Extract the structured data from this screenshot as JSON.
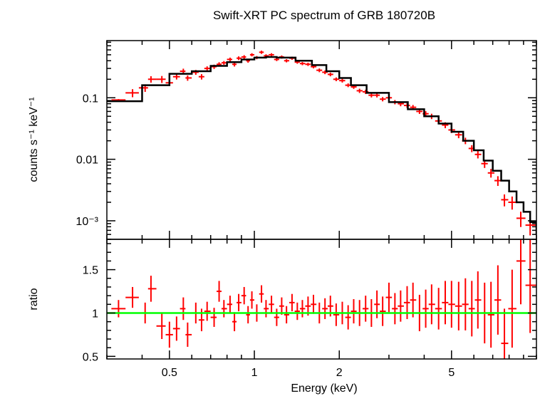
{
  "chart_data": {
    "type": "scatter",
    "title": "Swift-XRT PC spectrum of GRB 180720B",
    "xlabel": "Energy (keV)",
    "x_scale": "log",
    "xlim": [
      0.3,
      10
    ],
    "x_ticks": [
      {
        "value": 0.5,
        "label": "0.5"
      },
      {
        "value": 1,
        "label": "1"
      },
      {
        "value": 2,
        "label": "2"
      },
      {
        "value": 5,
        "label": "5"
      }
    ],
    "grid": false,
    "panels": [
      {
        "name": "spectrum",
        "ylabel": "counts s⁻¹ keV⁻¹",
        "y_scale": "log",
        "ylim": [
          0.0005,
          0.85
        ],
        "y_ticks": [
          {
            "value": 0.1,
            "label": "0.1"
          },
          {
            "value": 0.01,
            "label": "0.01"
          },
          {
            "value": 0.001,
            "label": "10⁻³"
          }
        ],
        "series": [
          {
            "kind": "data",
            "color": "#ff0000",
            "points": [
              [
                0.33,
                0.092,
                0.035
              ],
              [
                0.37,
                0.12,
                0.15
              ],
              [
                0.41,
                0.145,
                0.14
              ],
              [
                0.43,
                0.2,
                0.12
              ],
              [
                0.47,
                0.2,
                0.13
              ],
              [
                0.5,
                0.175,
                0.11
              ],
              [
                0.53,
                0.22,
                0.1
              ],
              [
                0.56,
                0.27,
                0.1
              ],
              [
                0.58,
                0.21,
                0.1
              ],
              [
                0.62,
                0.26,
                0.09
              ],
              [
                0.65,
                0.22,
                0.1
              ],
              [
                0.68,
                0.3,
                0.08
              ],
              [
                0.72,
                0.32,
                0.08
              ],
              [
                0.75,
                0.35,
                0.08
              ],
              [
                0.78,
                0.37,
                0.07
              ],
              [
                0.82,
                0.42,
                0.07
              ],
              [
                0.85,
                0.35,
                0.08
              ],
              [
                0.88,
                0.44,
                0.07
              ],
              [
                0.92,
                0.46,
                0.07
              ],
              [
                0.95,
                0.4,
                0.07
              ],
              [
                0.98,
                0.5,
                0.06
              ],
              [
                1.02,
                0.45,
                0.06
              ],
              [
                1.06,
                0.55,
                0.06
              ],
              [
                1.1,
                0.48,
                0.06
              ],
              [
                1.15,
                0.5,
                0.06
              ],
              [
                1.2,
                0.42,
                0.06
              ],
              [
                1.25,
                0.46,
                0.06
              ],
              [
                1.3,
                0.4,
                0.06
              ],
              [
                1.36,
                0.44,
                0.06
              ],
              [
                1.42,
                0.38,
                0.06
              ],
              [
                1.48,
                0.36,
                0.06
              ],
              [
                1.55,
                0.35,
                0.06
              ],
              [
                1.62,
                0.32,
                0.06
              ],
              [
                1.7,
                0.28,
                0.07
              ],
              [
                1.78,
                0.26,
                0.07
              ],
              [
                1.86,
                0.24,
                0.07
              ],
              [
                1.95,
                0.2,
                0.07
              ],
              [
                2.05,
                0.19,
                0.07
              ],
              [
                2.15,
                0.16,
                0.07
              ],
              [
                2.25,
                0.15,
                0.07
              ],
              [
                2.36,
                0.13,
                0.08
              ],
              [
                2.48,
                0.125,
                0.08
              ],
              [
                2.6,
                0.11,
                0.08
              ],
              [
                2.72,
                0.11,
                0.08
              ],
              [
                2.85,
                0.095,
                0.08
              ],
              [
                3.0,
                0.1,
                0.08
              ],
              [
                3.15,
                0.085,
                0.08
              ],
              [
                3.3,
                0.08,
                0.09
              ],
              [
                3.48,
                0.075,
                0.09
              ],
              [
                3.65,
                0.07,
                0.09
              ],
              [
                3.85,
                0.06,
                0.09
              ],
              [
                4.05,
                0.055,
                0.1
              ],
              [
                4.25,
                0.05,
                0.1
              ],
              [
                4.5,
                0.042,
                0.1
              ],
              [
                4.75,
                0.036,
                0.11
              ],
              [
                5.0,
                0.03,
                0.11
              ],
              [
                5.3,
                0.025,
                0.12
              ],
              [
                5.6,
                0.02,
                0.12
              ],
              [
                5.9,
                0.015,
                0.13
              ],
              [
                6.2,
                0.012,
                0.14
              ],
              [
                6.55,
                0.0085,
                0.15
              ],
              [
                6.9,
                0.006,
                0.16
              ],
              [
                7.3,
                0.0045,
                0.18
              ],
              [
                7.7,
                0.0022,
                0.22
              ],
              [
                8.2,
                0.002,
                0.24
              ],
              [
                8.8,
                0.0011,
                0.28
              ],
              [
                9.5,
                0.00085,
                0.32
              ]
            ]
          },
          {
            "kind": "model",
            "color": "#000000",
            "x": [
              0.3,
              0.4,
              0.5,
              0.6,
              0.7,
              0.8,
              0.9,
              1.0,
              1.1,
              1.2,
              1.4,
              1.6,
              1.8,
              2.0,
              2.2,
              2.5,
              3.0,
              3.5,
              4.0,
              4.5,
              5.0,
              5.5,
              6.0,
              6.5,
              7.0,
              7.5,
              8.0,
              8.5,
              9.0,
              9.5,
              10.0
            ],
            "y": [
              0.088,
              0.16,
              0.245,
              0.27,
              0.33,
              0.38,
              0.42,
              0.45,
              0.46,
              0.45,
              0.4,
              0.34,
              0.27,
              0.21,
              0.16,
              0.12,
              0.085,
              0.065,
              0.05,
              0.038,
              0.028,
              0.02,
              0.014,
              0.0095,
              0.0065,
              0.0045,
              0.003,
              0.002,
              0.0014,
              0.00095,
              0.0006
            ]
          }
        ]
      },
      {
        "name": "ratio",
        "ylabel": "ratio",
        "y_scale": "linear",
        "ylim": [
          0.47,
          1.85
        ],
        "y_ticks": [
          {
            "value": 0.5,
            "label": "0.5"
          },
          {
            "value": 1,
            "label": "1"
          },
          {
            "value": 1.5,
            "label": "1.5"
          }
        ],
        "series": [
          {
            "kind": "data",
            "color": "#ff0000",
            "points": [
              [
                0.33,
                1.05,
                0.1
              ],
              [
                0.37,
                1.18,
                0.12
              ],
              [
                0.41,
                1.0,
                0.12
              ],
              [
                0.43,
                1.28,
                0.15
              ],
              [
                0.47,
                0.85,
                0.15
              ],
              [
                0.5,
                0.75,
                0.15
              ],
              [
                0.53,
                0.82,
                0.14
              ],
              [
                0.56,
                1.05,
                0.13
              ],
              [
                0.58,
                0.75,
                0.14
              ],
              [
                0.62,
                1.0,
                0.12
              ],
              [
                0.65,
                0.92,
                0.13
              ],
              [
                0.68,
                1.02,
                0.11
              ],
              [
                0.72,
                0.95,
                0.11
              ],
              [
                0.75,
                1.25,
                0.12
              ],
              [
                0.78,
                1.05,
                0.1
              ],
              [
                0.82,
                1.1,
                0.1
              ],
              [
                0.85,
                0.9,
                0.11
              ],
              [
                0.88,
                1.12,
                0.1
              ],
              [
                0.92,
                1.2,
                0.1
              ],
              [
                0.95,
                0.98,
                0.1
              ],
              [
                0.98,
                1.15,
                0.1
              ],
              [
                1.02,
                1.0,
                0.1
              ],
              [
                1.06,
                1.22,
                0.1
              ],
              [
                1.1,
                1.05,
                0.1
              ],
              [
                1.15,
                1.1,
                0.1
              ],
              [
                1.2,
                0.95,
                0.1
              ],
              [
                1.25,
                1.08,
                0.1
              ],
              [
                1.3,
                0.98,
                0.1
              ],
              [
                1.36,
                1.12,
                0.1
              ],
              [
                1.42,
                1.02,
                0.1
              ],
              [
                1.48,
                1.05,
                0.1
              ],
              [
                1.55,
                1.08,
                0.11
              ],
              [
                1.62,
                1.1,
                0.11
              ],
              [
                1.7,
                1.0,
                0.12
              ],
              [
                1.78,
                1.05,
                0.12
              ],
              [
                1.86,
                1.08,
                0.12
              ],
              [
                1.95,
                0.98,
                0.13
              ],
              [
                2.05,
                1.0,
                0.13
              ],
              [
                2.15,
                0.95,
                0.14
              ],
              [
                2.25,
                1.02,
                0.14
              ],
              [
                2.36,
                1.0,
                0.15
              ],
              [
                2.48,
                1.05,
                0.15
              ],
              [
                2.6,
                1.0,
                0.16
              ],
              [
                2.72,
                1.1,
                0.16
              ],
              [
                2.85,
                1.02,
                0.17
              ],
              [
                3.0,
                1.18,
                0.17
              ],
              [
                3.15,
                1.05,
                0.18
              ],
              [
                3.3,
                1.08,
                0.18
              ],
              [
                3.48,
                1.12,
                0.19
              ],
              [
                3.65,
                1.15,
                0.2
              ],
              [
                3.85,
                1.0,
                0.21
              ],
              [
                4.05,
                1.05,
                0.22
              ],
              [
                4.25,
                1.1,
                0.23
              ],
              [
                4.5,
                1.05,
                0.24
              ],
              [
                4.75,
                1.12,
                0.25
              ],
              [
                5.0,
                1.1,
                0.27
              ],
              [
                5.3,
                1.08,
                0.28
              ],
              [
                5.6,
                1.1,
                0.3
              ],
              [
                5.9,
                1.05,
                0.32
              ],
              [
                6.2,
                1.15,
                0.33
              ],
              [
                6.55,
                1.0,
                0.35
              ],
              [
                6.9,
                0.98,
                0.38
              ],
              [
                7.3,
                1.15,
                0.4
              ],
              [
                7.7,
                0.65,
                0.4
              ],
              [
                8.2,
                1.05,
                0.45
              ],
              [
                8.8,
                1.6,
                0.5
              ],
              [
                9.5,
                1.32,
                0.55
              ]
            ]
          },
          {
            "kind": "reference",
            "color": "#00ff00",
            "x": [
              0.3,
              10.0
            ],
            "y": [
              1.0,
              1.0
            ]
          }
        ]
      }
    ]
  }
}
